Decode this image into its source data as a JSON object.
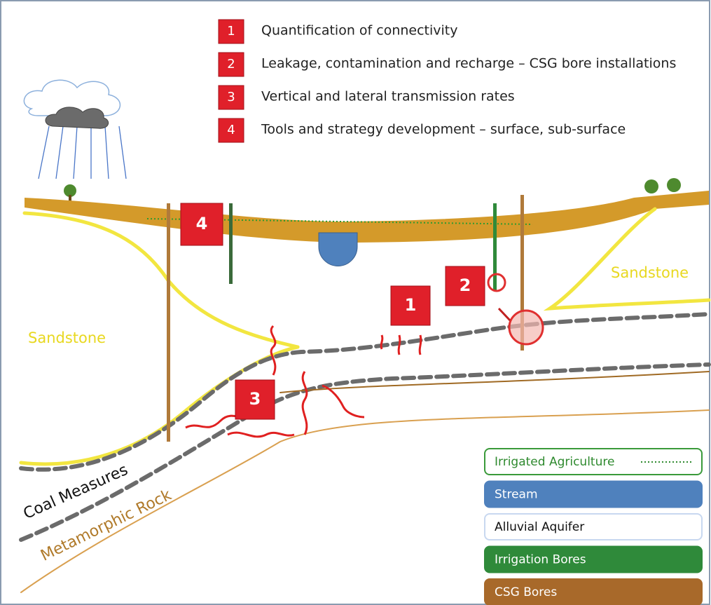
{
  "objectives": [
    {
      "number": 1,
      "text": "Quantification of connectivity"
    },
    {
      "number": 2,
      "text": "Leakage, contamination and recharge – CSG bore installations"
    },
    {
      "number": 3,
      "text": "Vertical and lateral transmission rates"
    },
    {
      "number": 4,
      "text": "Tools and strategy development – surface, sub-surface"
    }
  ],
  "diagram_markers": [
    4,
    1,
    2,
    3
  ],
  "layers": {
    "sandstone_left": "Sandstone",
    "sandstone_right": "Sandstone",
    "coal": "Coal Measures",
    "metamorphic": "Metamorphic Rock"
  },
  "legend": [
    "Irrigated Agriculture",
    "Stream",
    "Alluvial Aquifer",
    "Irrigation Bores",
    "CSG Bores"
  ]
}
